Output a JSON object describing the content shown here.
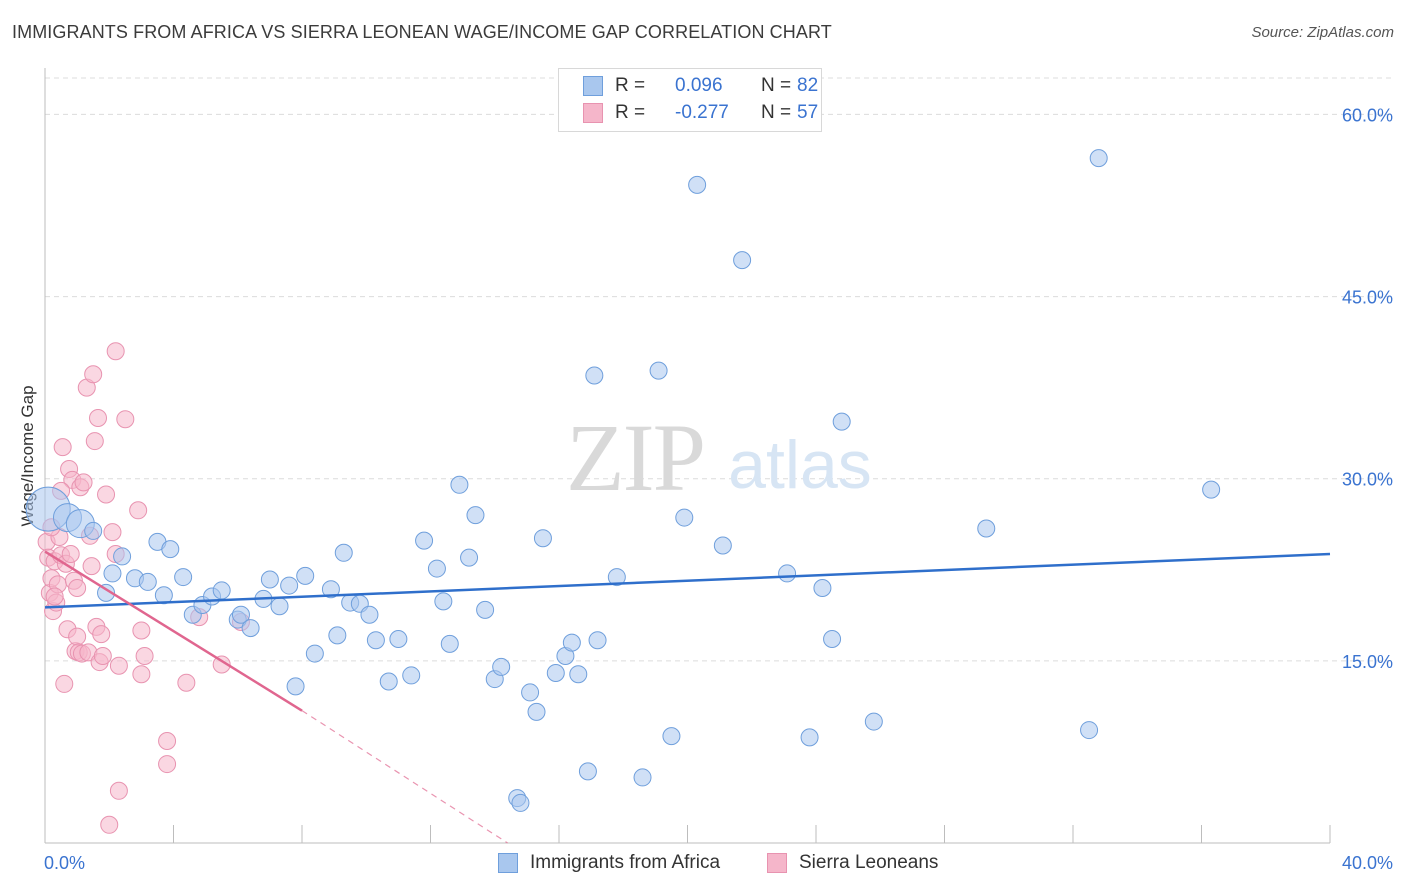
{
  "title": "IMMIGRANTS FROM AFRICA VS SIERRA LEONEAN WAGE/INCOME GAP CORRELATION CHART",
  "source": "Source: ZipAtlas.com",
  "watermark": {
    "zip": "ZIP",
    "atlas": "atlas"
  },
  "colors": {
    "blue_fill": "#a9c7ee",
    "blue_stroke": "#6f9fdc",
    "blue_line": "#2f6fcb",
    "pink_fill": "#f5b6ca",
    "pink_stroke": "#e893b0",
    "pink_line": "#e0668f",
    "tick_label": "#3a73d0",
    "grid": "#dcdcdc"
  },
  "legend_top": [
    {
      "r_label": "R =",
      "r_value": "0.096",
      "n_label": "N =",
      "n_value": "82"
    },
    {
      "r_label": "R =",
      "r_value": "-0.277",
      "n_label": "N =",
      "n_value": "57"
    }
  ],
  "chart_data": {
    "type": "scatter",
    "title": "IMMIGRANTS FROM AFRICA VS SIERRA LEONEAN WAGE/INCOME GAP CORRELATION CHART",
    "xlabel": "",
    "ylabel": "Wage/Income Gap",
    "xlim": [
      0,
      40
    ],
    "ylim": [
      0,
      63
    ],
    "x_tick_labels": [
      "0.0%",
      "40.0%"
    ],
    "y_ticks": [
      15,
      30,
      45,
      60
    ],
    "y_tick_labels": [
      "15.0%",
      "30.0%",
      "45.0%",
      "60.0%"
    ],
    "grid": "horizontal dashed",
    "legend_position": "bottom-center",
    "series": [
      {
        "name": "Immigrants from Africa",
        "color": "#a9c7ee",
        "trend": {
          "x": [
            0,
            40
          ],
          "y": [
            19.4,
            23.8
          ]
        },
        "points": [
          [
            0.1,
            27.5,
            3
          ],
          [
            0.7,
            26.8,
            2
          ],
          [
            1.1,
            26.3,
            2
          ],
          [
            1.5,
            25.7,
            1
          ],
          [
            2.4,
            23.6,
            1
          ],
          [
            2.1,
            22.2,
            1
          ],
          [
            2.8,
            21.8,
            1
          ],
          [
            3.2,
            21.5,
            1
          ],
          [
            1.9,
            20.6,
            1
          ],
          [
            3.7,
            20.4,
            1
          ],
          [
            3.5,
            24.8,
            1
          ],
          [
            3.9,
            24.2,
            1
          ],
          [
            4.3,
            21.9,
            1
          ],
          [
            4.6,
            18.8,
            1
          ],
          [
            4.9,
            19.6,
            1
          ],
          [
            5.2,
            20.3,
            1
          ],
          [
            5.5,
            20.8,
            1
          ],
          [
            6.0,
            18.4,
            1
          ],
          [
            6.1,
            18.8,
            1
          ],
          [
            6.4,
            17.7,
            1
          ],
          [
            6.8,
            20.1,
            1
          ],
          [
            7.0,
            21.7,
            1
          ],
          [
            7.3,
            19.5,
            1
          ],
          [
            7.6,
            21.2,
            1
          ],
          [
            8.1,
            22.0,
            1
          ],
          [
            7.8,
            12.9,
            1
          ],
          [
            8.4,
            15.6,
            1
          ],
          [
            8.9,
            20.9,
            1
          ],
          [
            9.1,
            17.1,
            1
          ],
          [
            9.3,
            23.9,
            1
          ],
          [
            9.5,
            19.8,
            1
          ],
          [
            9.8,
            19.7,
            1
          ],
          [
            10.1,
            18.8,
            1
          ],
          [
            10.3,
            16.7,
            1
          ],
          [
            10.7,
            13.3,
            1
          ],
          [
            11.0,
            16.8,
            1
          ],
          [
            11.4,
            13.8,
            1
          ],
          [
            11.8,
            24.9,
            1
          ],
          [
            12.2,
            22.6,
            1
          ],
          [
            12.4,
            19.9,
            1
          ],
          [
            12.6,
            16.4,
            1
          ],
          [
            12.9,
            29.5,
            1
          ],
          [
            13.2,
            23.5,
            1
          ],
          [
            13.4,
            27.0,
            1
          ],
          [
            13.7,
            19.2,
            1
          ],
          [
            14.0,
            13.5,
            1
          ],
          [
            14.2,
            14.5,
            1
          ],
          [
            14.7,
            3.7,
            1
          ],
          [
            14.8,
            3.3,
            1
          ],
          [
            15.1,
            12.4,
            1
          ],
          [
            15.3,
            10.8,
            1
          ],
          [
            15.5,
            25.1,
            1
          ],
          [
            15.9,
            14.0,
            1
          ],
          [
            16.2,
            15.4,
            1
          ],
          [
            16.4,
            16.5,
            1
          ],
          [
            16.6,
            13.9,
            1
          ],
          [
            16.9,
            5.9,
            1
          ],
          [
            17.1,
            38.5,
            1
          ],
          [
            17.2,
            16.7,
            1
          ],
          [
            17.8,
            21.9,
            1
          ],
          [
            18.6,
            5.4,
            1
          ],
          [
            19.1,
            38.9,
            1
          ],
          [
            19.5,
            8.8,
            1
          ],
          [
            19.9,
            26.8,
            1
          ],
          [
            20.3,
            54.2,
            1
          ],
          [
            21.1,
            24.5,
            1
          ],
          [
            21.7,
            48.0,
            1
          ],
          [
            23.1,
            22.2,
            1
          ],
          [
            23.8,
            8.7,
            1
          ],
          [
            24.2,
            21.0,
            1
          ],
          [
            24.5,
            16.8,
            1
          ],
          [
            24.8,
            34.7,
            1
          ],
          [
            25.8,
            10.0,
            1
          ],
          [
            29.3,
            25.9,
            1
          ],
          [
            32.5,
            9.3,
            1
          ],
          [
            32.8,
            56.4,
            1
          ],
          [
            36.3,
            29.1,
            1
          ]
        ]
      },
      {
        "name": "Sierra Leoneans",
        "color": "#f5b6ca",
        "trend": {
          "x": [
            0,
            8.0
          ],
          "y": [
            24.0,
            10.9
          ],
          "dashed_to": [
            14.4,
            0
          ]
        },
        "points": [
          [
            0.05,
            24.8,
            1
          ],
          [
            0.1,
            23.5,
            1
          ],
          [
            0.15,
            20.6,
            1
          ],
          [
            0.2,
            21.8,
            1
          ],
          [
            0.25,
            19.1,
            1
          ],
          [
            0.3,
            23.2,
            1
          ],
          [
            0.35,
            19.8,
            1
          ],
          [
            0.4,
            21.3,
            1
          ],
          [
            0.45,
            25.2,
            1
          ],
          [
            0.5,
            23.7,
            1
          ],
          [
            0.55,
            32.6,
            1
          ],
          [
            0.6,
            13.1,
            1
          ],
          [
            0.65,
            23.0,
            1
          ],
          [
            0.7,
            17.6,
            1
          ],
          [
            0.75,
            30.8,
            1
          ],
          [
            0.8,
            23.8,
            1
          ],
          [
            0.85,
            29.9,
            1
          ],
          [
            0.9,
            21.6,
            1
          ],
          [
            0.95,
            15.8,
            1
          ],
          [
            1.0,
            17.0,
            1
          ],
          [
            1.05,
            15.7,
            1
          ],
          [
            1.1,
            29.3,
            1
          ],
          [
            1.15,
            15.6,
            1
          ],
          [
            1.2,
            29.7,
            1
          ],
          [
            1.3,
            37.5,
            1
          ],
          [
            1.35,
            15.7,
            1
          ],
          [
            1.4,
            25.3,
            1
          ],
          [
            1.45,
            22.8,
            1
          ],
          [
            1.5,
            38.6,
            1
          ],
          [
            1.55,
            33.1,
            1
          ],
          [
            1.6,
            17.8,
            1
          ],
          [
            1.65,
            35.0,
            1
          ],
          [
            1.7,
            14.9,
            1
          ],
          [
            1.75,
            17.2,
            1
          ],
          [
            1.8,
            15.4,
            1
          ],
          [
            1.9,
            28.7,
            1
          ],
          [
            2.0,
            1.5,
            1
          ],
          [
            2.1,
            25.6,
            1
          ],
          [
            2.2,
            23.8,
            1
          ],
          [
            2.3,
            14.6,
            1
          ],
          [
            2.2,
            40.5,
            1
          ],
          [
            2.3,
            4.3,
            1
          ],
          [
            2.5,
            34.9,
            1
          ],
          [
            2.9,
            27.4,
            1
          ],
          [
            3.0,
            13.9,
            1
          ],
          [
            3.0,
            17.5,
            1
          ],
          [
            3.1,
            15.4,
            1
          ],
          [
            3.8,
            8.4,
            1
          ],
          [
            3.8,
            6.5,
            1
          ],
          [
            4.4,
            13.2,
            1
          ],
          [
            4.8,
            18.6,
            1
          ],
          [
            5.5,
            14.7,
            1
          ],
          [
            6.1,
            18.2,
            1
          ],
          [
            0.5,
            29.0,
            1
          ],
          [
            0.2,
            26.0,
            1
          ],
          [
            1.0,
            21.0,
            1
          ],
          [
            0.3,
            20.3,
            1
          ]
        ]
      }
    ]
  }
}
